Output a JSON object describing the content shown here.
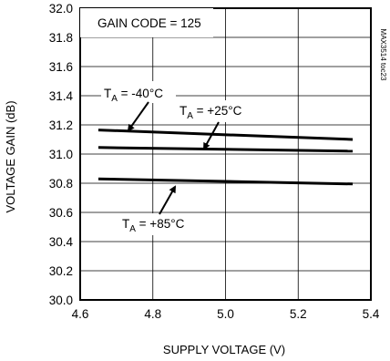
{
  "chart_data": {
    "type": "line",
    "title": "",
    "xlabel": "SUPPLY VOLTAGE (V)",
    "ylabel": "VOLTAGE GAIN (dB)",
    "xlim": [
      4.6,
      5.4
    ],
    "ylim": [
      30.0,
      32.0
    ],
    "xticks": [
      4.6,
      4.8,
      5.0,
      5.2,
      5.4
    ],
    "yticks": [
      30.0,
      30.2,
      30.4,
      30.6,
      30.8,
      31.0,
      31.2,
      31.4,
      31.6,
      31.8,
      32.0
    ],
    "xtick_labels": [
      "4.6",
      "4.8",
      "5.0",
      "5.2",
      "5.4"
    ],
    "ytick_labels": [
      "30.0",
      "30.2",
      "30.4",
      "30.6",
      "30.8",
      "31.0",
      "31.2",
      "31.4",
      "31.6",
      "31.8",
      "32.0"
    ],
    "grid": true,
    "annotation_box": "GAIN CODE = 125",
    "side_label": "MAX3514 toc23",
    "series": [
      {
        "label_main": "T",
        "label_sub": "A",
        "label_rest": " = -40°C",
        "x": [
          4.65,
          5.35
        ],
        "y": [
          31.165,
          31.1
        ]
      },
      {
        "label_main": "T",
        "label_sub": "A",
        "label_rest": " = +25°C",
        "x": [
          4.65,
          5.35
        ],
        "y": [
          31.045,
          31.02
        ]
      },
      {
        "label_main": "T",
        "label_sub": "A",
        "label_rest": " = +85°C",
        "x": [
          4.65,
          5.35
        ],
        "y": [
          30.83,
          30.795
        ]
      }
    ]
  }
}
